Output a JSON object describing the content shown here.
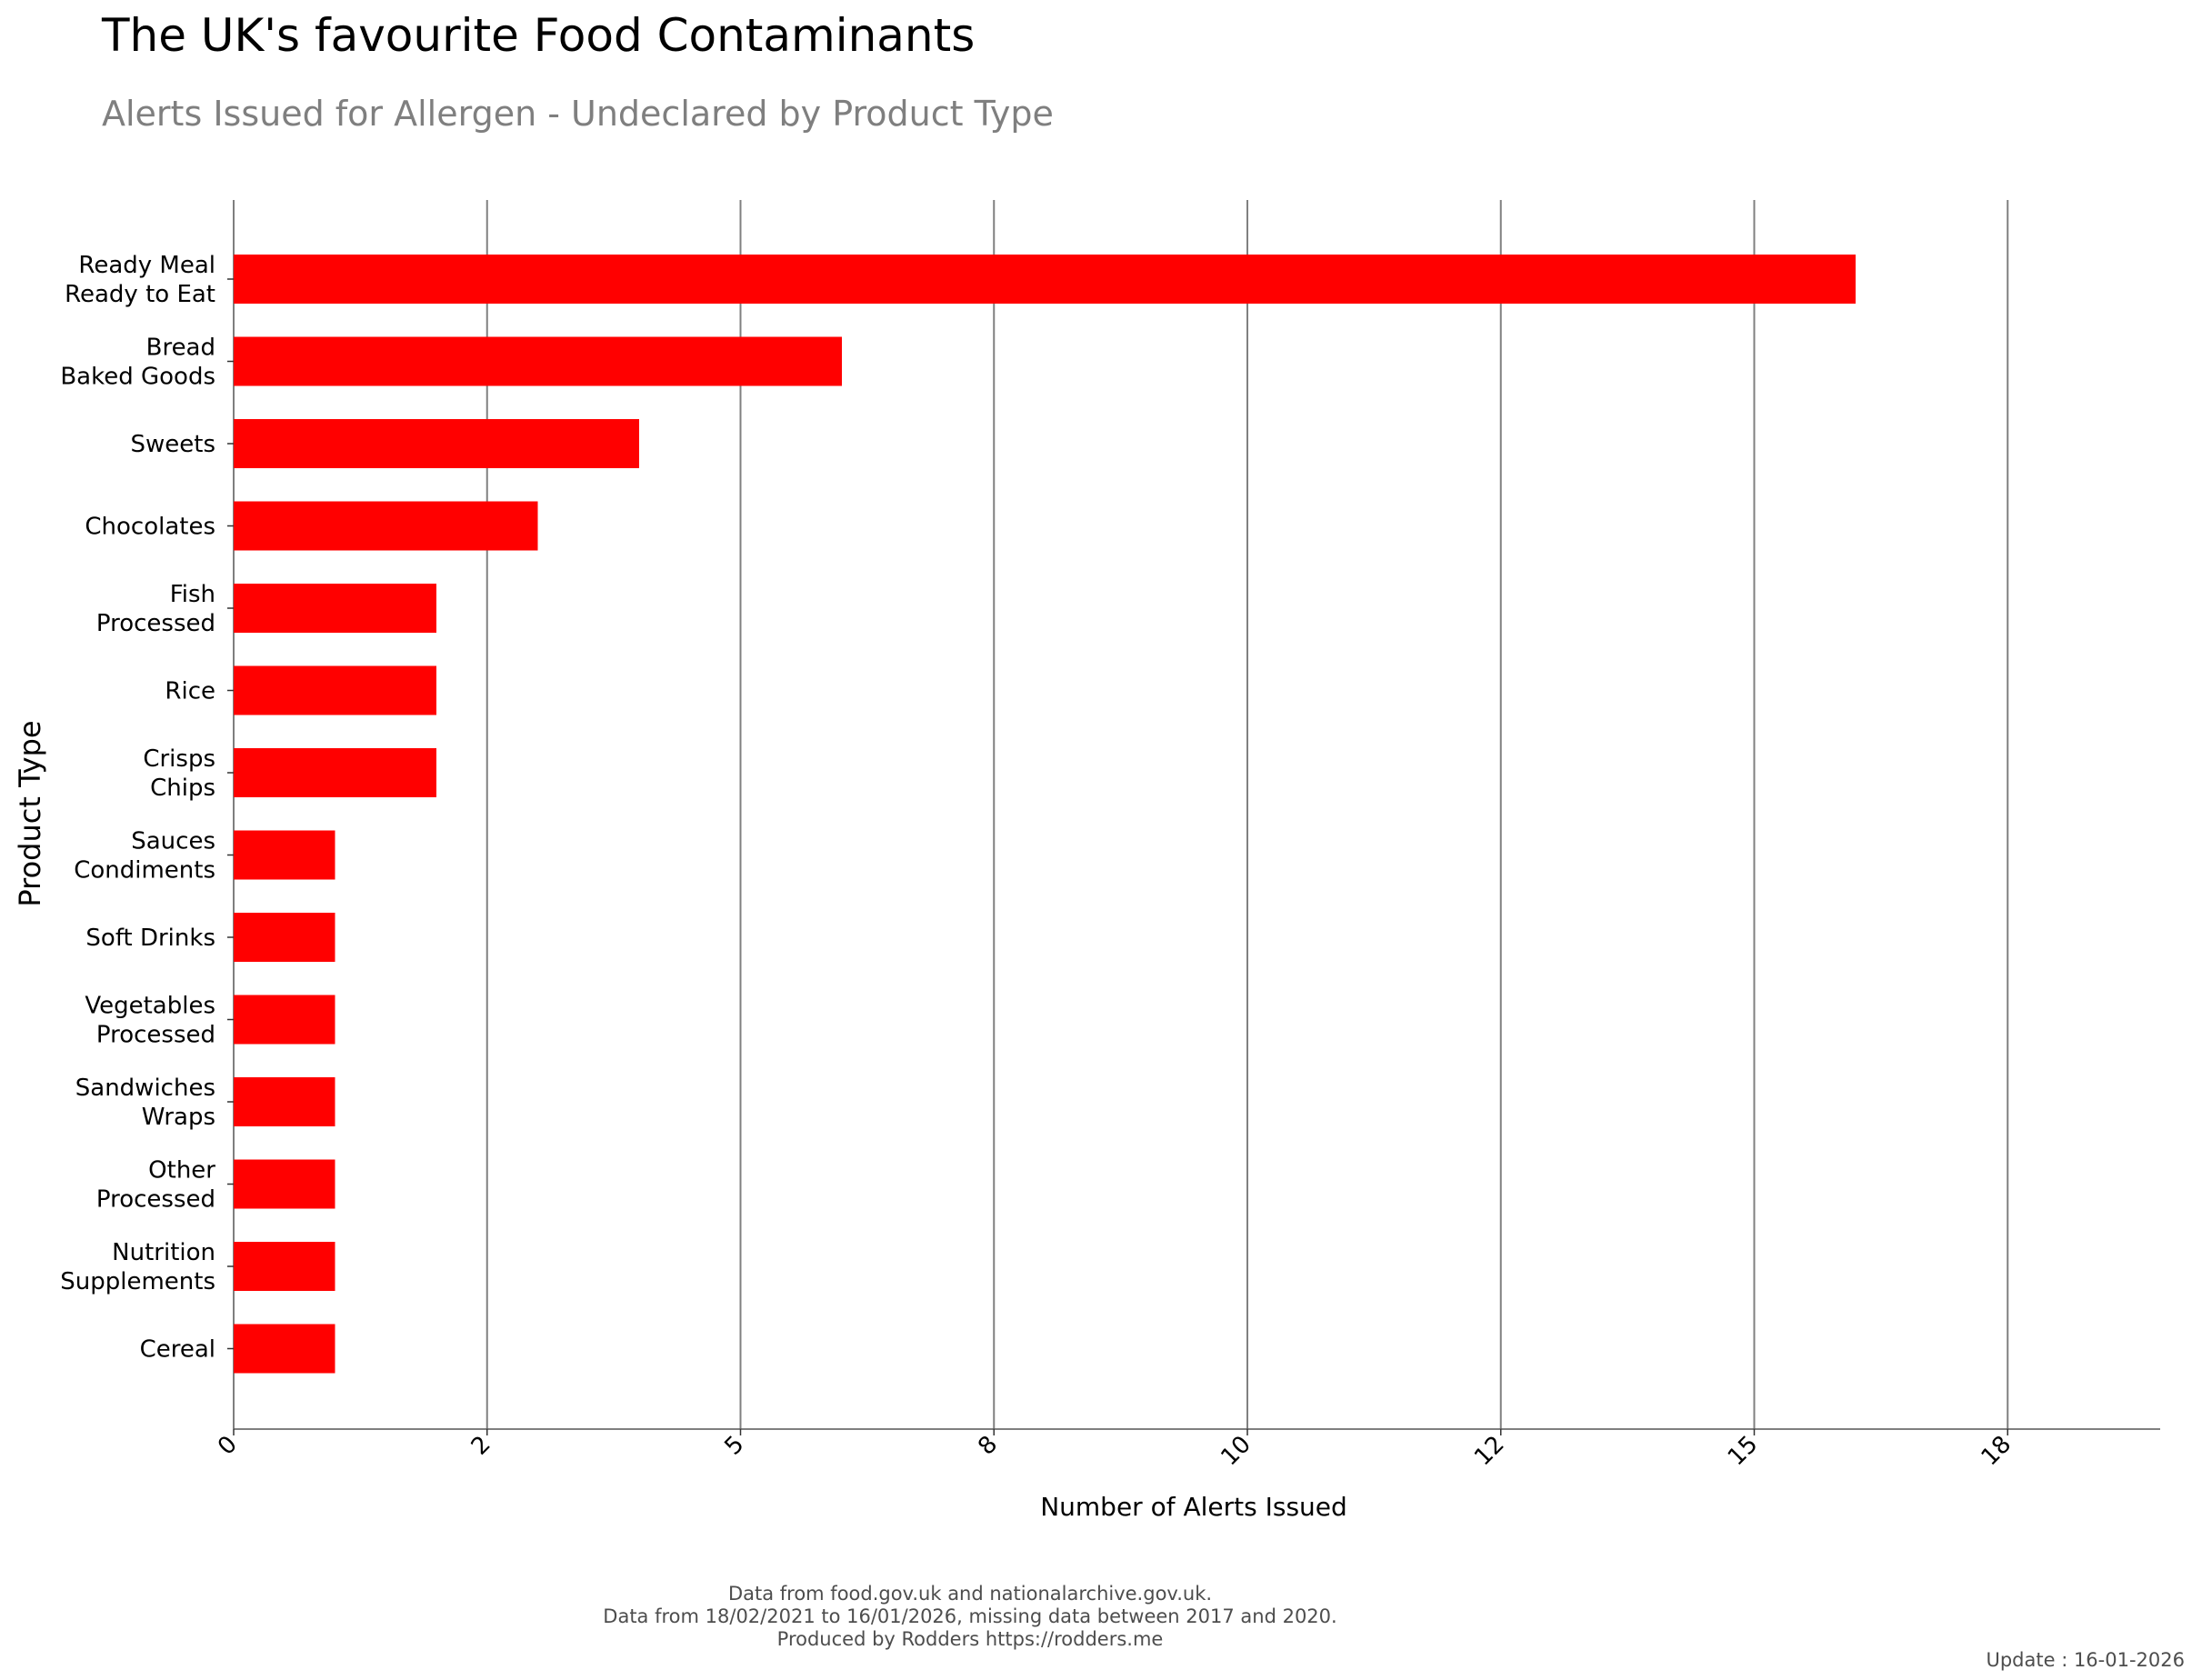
{
  "chart_data": {
    "type": "bar",
    "orientation": "horizontal",
    "title": "The UK's favourite Food Contaminants",
    "subtitle": "Alerts Issued for Allergen - Undeclared by Product Type",
    "xlabel": "Number of Alerts Issued",
    "ylabel": "Product Type",
    "bar_color": "#ff0000",
    "grid": "vertical major gridlines",
    "xlim": [
      0,
      19
    ],
    "x_tick_values": [
      0,
      2.5,
      5,
      7.5,
      10,
      12.5,
      15,
      17.5
    ],
    "x_tick_labels": [
      "0",
      "2",
      "5",
      "8",
      "10",
      "12",
      "15",
      "18"
    ],
    "categories": [
      [
        "Ready Meal",
        "Ready to Eat"
      ],
      [
        "Bread",
        "Baked Goods"
      ],
      [
        "Sweets"
      ],
      [
        "Chocolates"
      ],
      [
        "Fish",
        "Processed"
      ],
      [
        "Rice"
      ],
      [
        "Crisps",
        "Chips"
      ],
      [
        "Sauces",
        "Condiments"
      ],
      [
        "Soft Drinks"
      ],
      [
        "Vegetables",
        "Processed"
      ],
      [
        "Sandwiches",
        "Wraps"
      ],
      [
        "Other",
        "Processed"
      ],
      [
        "Nutrition",
        "Supplements"
      ],
      [
        "Cereal"
      ]
    ],
    "values": [
      16,
      6,
      4,
      3,
      2,
      2,
      2,
      1,
      1,
      1,
      1,
      1,
      1,
      1
    ]
  },
  "caption": {
    "lines": [
      "Data from food.gov.uk and nationalarchive.gov.uk.",
      "Data from 18/02/2021 to 16/01/2026, missing data between 2017 and 2020.",
      "Produced by Rodders https://rodders.me"
    ],
    "update": "Update : 16-01-2026"
  }
}
